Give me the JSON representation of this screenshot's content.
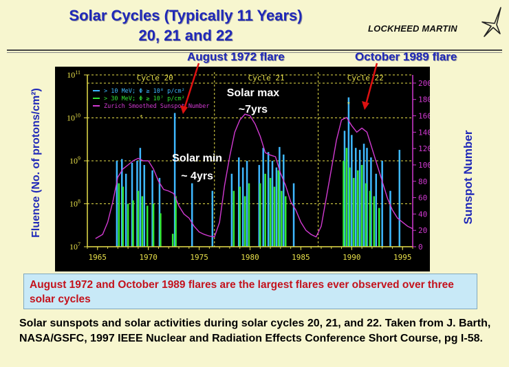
{
  "slide": {
    "title_line1": "Solar Cycles (Typically 11 Years)",
    "title_line2": "20, 21 and 22",
    "logo": "LOCKHEED MARTIN",
    "flare_label_1972": "August 1972 flare",
    "flare_label_1989": "October 1989 flare",
    "note": "August 1972 and October 1989 flares are the largest flares ever observed over three solar cycles",
    "caption": "Solar sunspots and solar activities during solar cycles 20, 21, and 22. Taken from J. Barth, NASA/GSFC, 1997 IEEE Nuclear and Radiation Effects Conference Short Course, pg I-58.",
    "colors": {
      "title": "#1f28b8",
      "note_text": "#c4121c",
      "note_bg": "#c8e9f7",
      "slide_bg": "#f7f6cf"
    }
  },
  "chart_data": {
    "type": "bar",
    "background": "#000000",
    "ylabel": "Fluence (No. of protons/cm²)",
    "ylabel_right": "Sunspot Number",
    "xlim": [
      1964,
      1996
    ],
    "x_ticks": [
      "1965",
      "1970",
      "1975",
      "1980",
      "1985",
      "1990",
      "1995"
    ],
    "y_scale": "log",
    "ylim": [
      10000000,
      100000000000
    ],
    "y_ticks": [
      "10^7",
      "10^8",
      "10^9",
      "10^10",
      "10^11"
    ],
    "y2lim": [
      0,
      210
    ],
    "y2_ticks": [
      "0",
      "20",
      "40",
      "60",
      "80",
      "100",
      "120",
      "140",
      "160",
      "180",
      "200"
    ],
    "cycles": [
      {
        "label": "Cycle 20",
        "start": 1964.8,
        "end": 1976.5
      },
      {
        "label": "Cycle 21",
        "start": 1976.5,
        "end": 1986.7
      },
      {
        "label": "Cycle 22",
        "start": 1986.7,
        "end": 1996
      }
    ],
    "legend": [
      {
        "label": "> 10 MeV;  Φ ≥ 10⁸ p/cm²",
        "color": "#3fb8ff"
      },
      {
        "label": "> 30 MeV;  Φ ≥ 10⁷ p/cm²",
        "color": "#33e633"
      },
      {
        "label": "Zurich Smoothed Sunspot Number",
        "color": "#d23ad2"
      }
    ],
    "annotations": [
      {
        "text": "Solar max",
        "text2": "~7yrs"
      },
      {
        "text": "Solar min",
        "text2": "~ 4yrs"
      }
    ],
    "series": [
      {
        "name": "> 10 MeV",
        "color": "#3fb8ff",
        "x": [
          1966.9,
          1967.4,
          1967.8,
          1968.4,
          1968.9,
          1969.2,
          1969.6,
          1970.4,
          1971.1,
          1972.6,
          1974.3,
          1976.3,
          1978.2,
          1978.9,
          1979.3,
          1979.7,
          1980.9,
          1981.3,
          1981.8,
          1982.2,
          1982.6,
          1982.9,
          1983.3,
          1984.3,
          1989.3,
          1989.7,
          1990.0,
          1990.4,
          1990.8,
          1991.2,
          1991.5,
          1991.9,
          1992.4,
          1993.0,
          1993.8,
          1994.7
        ],
        "values": [
          1000000000,
          1100000000,
          500000000,
          900000000,
          1000000000,
          2000000000,
          800000000,
          600000000,
          400000000,
          13000000000,
          300000000,
          200000000,
          500000000,
          1200000000,
          700000000,
          1000000000,
          800000000,
          2000000000,
          1600000000,
          1000000000,
          700000000,
          2100000000,
          1400000000,
          300000000,
          5000000000,
          30000000000,
          4000000000,
          2000000000,
          1800000000,
          2500000000,
          2000000000,
          1200000000,
          500000000,
          1000000000,
          200000000,
          1800000000
        ]
      },
      {
        "name": "> 30 MeV",
        "color": "#33e633",
        "x": [
          1967.1,
          1967.5,
          1968.0,
          1968.5,
          1969.0,
          1969.4,
          1969.9,
          1970.5,
          1971.2,
          1972.4,
          1972.7,
          1978.4,
          1979.0,
          1979.5,
          1979.9,
          1981.0,
          1981.5,
          1982.0,
          1982.4,
          1982.8,
          1983.1,
          1983.5,
          1989.2,
          1989.5,
          1989.8,
          1990.2,
          1990.6,
          1991.0,
          1991.4,
          1991.8,
          1992.2,
          1992.7
        ],
        "values": [
          300000000,
          250000000,
          100000000,
          120000000,
          200000000,
          150000000,
          90000000,
          100000000,
          60000000,
          20000000,
          150000000,
          200000000,
          250000000,
          150000000,
          300000000,
          300000000,
          500000000,
          400000000,
          250000000,
          600000000,
          200000000,
          150000000,
          1000000000,
          2000000000,
          700000000,
          400000000,
          600000000,
          800000000,
          300000000,
          200000000,
          150000000,
          80000000
        ]
      },
      {
        "name": "Zurich Smoothed Sunspot Number",
        "color": "#d23ad2",
        "type": "line",
        "x": [
          1964.8,
          1965.5,
          1966.0,
          1966.5,
          1967.0,
          1967.5,
          1968.0,
          1968.5,
          1969.0,
          1969.5,
          1970.0,
          1970.5,
          1971.0,
          1971.5,
          1972.0,
          1972.5,
          1973.0,
          1973.5,
          1974.0,
          1974.5,
          1975.0,
          1975.5,
          1976.0,
          1976.5,
          1977.0,
          1977.5,
          1978.0,
          1978.5,
          1979.0,
          1979.5,
          1980.0,
          1980.5,
          1981.0,
          1981.5,
          1982.0,
          1982.5,
          1983.0,
          1983.5,
          1984.0,
          1984.5,
          1985.0,
          1985.5,
          1986.0,
          1986.5,
          1987.0,
          1987.5,
          1988.0,
          1988.5,
          1989.0,
          1989.5,
          1990.0,
          1990.5,
          1991.0,
          1991.5,
          1992.0,
          1992.5,
          1993.0,
          1993.5,
          1994.0,
          1994.5,
          1995.0,
          1995.5,
          1996.0
        ],
        "values": [
          10,
          15,
          30,
          55,
          85,
          95,
          100,
          105,
          108,
          105,
          105,
          95,
          80,
          70,
          68,
          65,
          50,
          40,
          35,
          25,
          18,
          15,
          13,
          12,
          30,
          75,
          110,
          140,
          155,
          162,
          160,
          150,
          135,
          115,
          112,
          110,
          90,
          75,
          55,
          45,
          30,
          20,
          15,
          12,
          25,
          60,
          95,
          130,
          155,
          158,
          148,
          140,
          145,
          140,
          120,
          100,
          80,
          60,
          45,
          35,
          30,
          25,
          22
        ]
      }
    ]
  }
}
